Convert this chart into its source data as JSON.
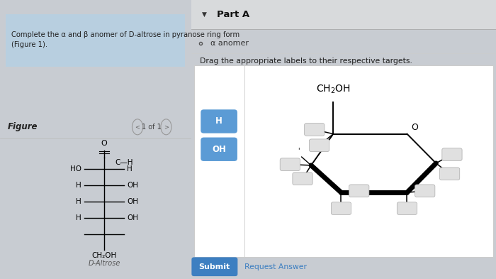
{
  "title_text": "Complete the α and β anomer of D-altrose in pyranose ring form\n(Figure 1).",
  "figure_label": "Figure",
  "page_indicator": "1 of 1",
  "part_a_label": "Part A",
  "alpha_anomer_label": "α anomer",
  "drag_instruction": "Drag the appropriate labels to their respective targets.",
  "d_altrose_label": "D-Altrose",
  "submit_text": "Submit",
  "request_answer_text": "Request Answer",
  "label_H": "H",
  "label_OH": "OH",
  "bg_main": "#c8ccd2",
  "bg_left": "#d4d8de",
  "bg_right": "#e4e6e8",
  "title_box_color": "#b8cfe0",
  "content_box_color": "#ffffff",
  "label_box_color": "#5b9bd5",
  "submit_btn_color": "#3d7fc1",
  "stub_box_color": "#e0e0e0",
  "stub_box_edge": "#aaaaaa",
  "top_bar_color": "#d8dadc"
}
